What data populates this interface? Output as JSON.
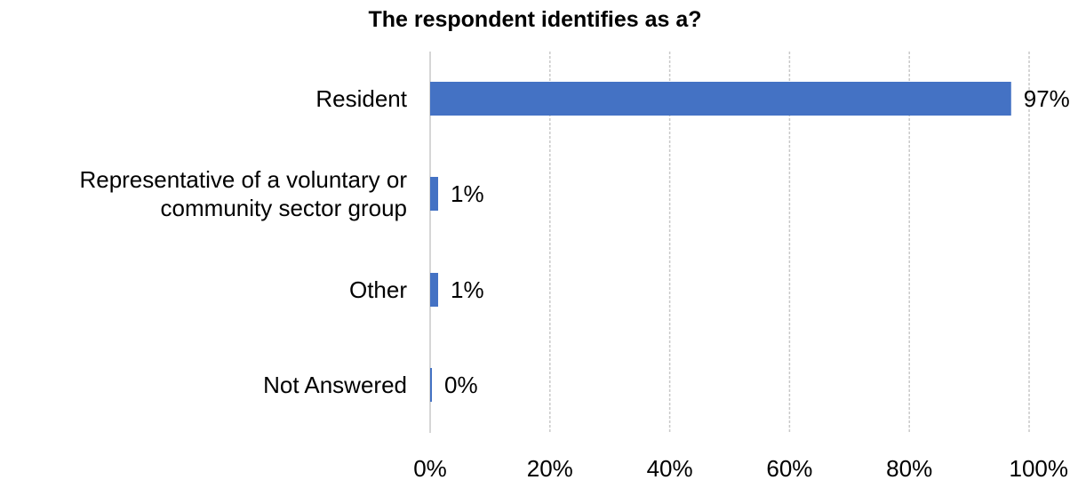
{
  "chart_data": {
    "type": "bar",
    "orientation": "horizontal",
    "title": "The respondent identifies as a?",
    "categories": [
      "Resident",
      "Representative of a voluntary or community sector group",
      "Other",
      "Not Answered"
    ],
    "category_lines": [
      [
        "Resident"
      ],
      [
        "Representative of a voluntary or",
        "community sector group"
      ],
      [
        "Other"
      ],
      [
        "Not Answered"
      ]
    ],
    "values": [
      97,
      1,
      1,
      0
    ],
    "data_labels": [
      "97%",
      "1%",
      "1%",
      "0%"
    ],
    "xlim": [
      0,
      100
    ],
    "x_ticks": [
      0,
      20,
      40,
      60,
      80,
      100
    ],
    "x_tick_labels": [
      "0%",
      "20%",
      "40%",
      "60%",
      "80%",
      "100%"
    ],
    "xlabel": "",
    "ylabel": "",
    "grid": true,
    "legend": "none",
    "bar_color": "#4472c4"
  }
}
